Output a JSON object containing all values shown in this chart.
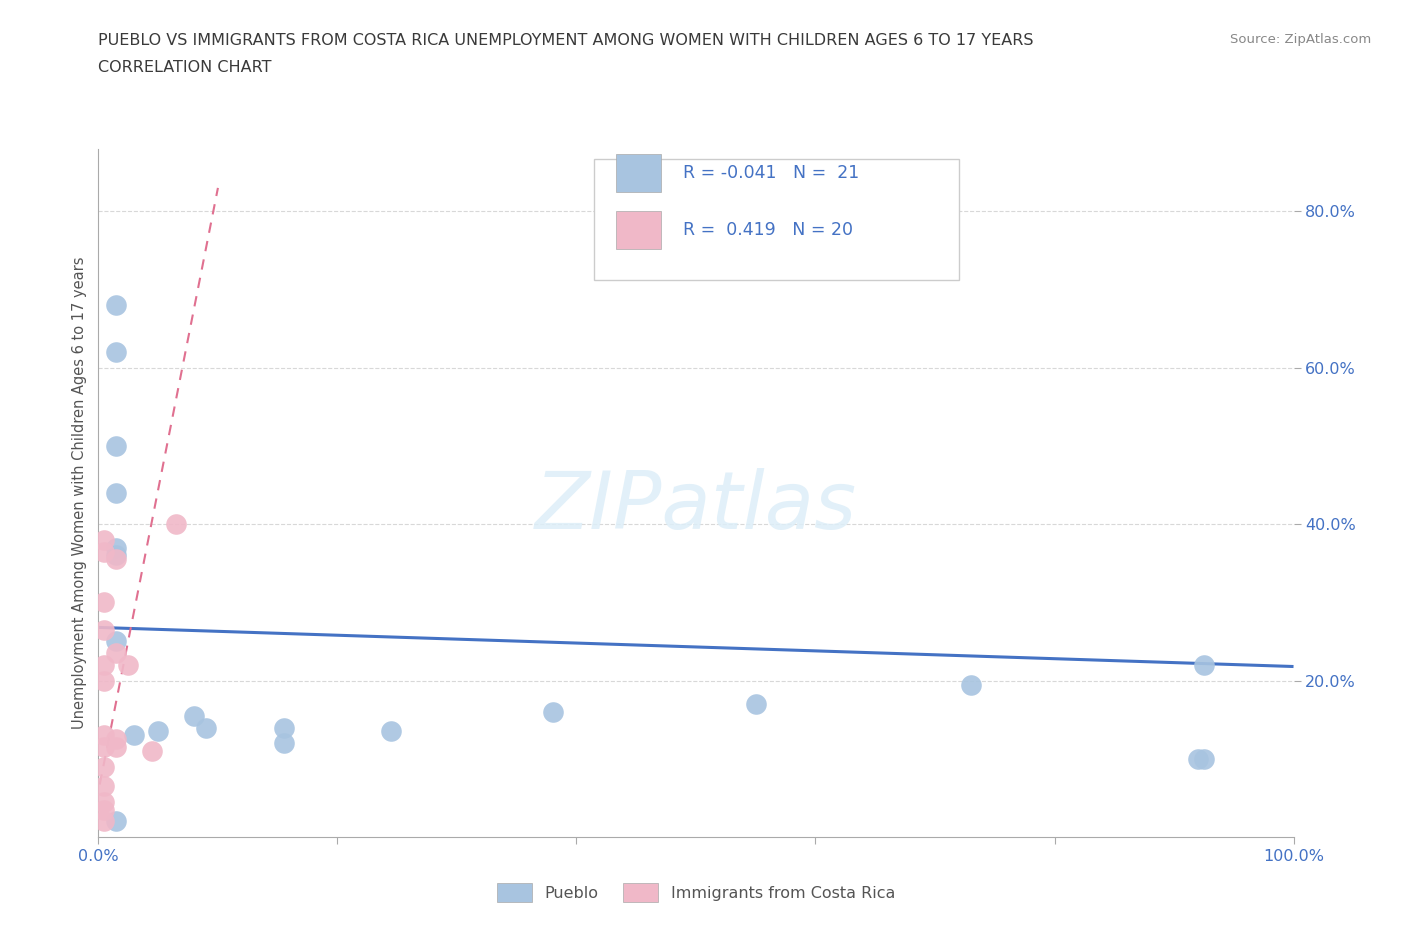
{
  "title_line1": "PUEBLO VS IMMIGRANTS FROM COSTA RICA UNEMPLOYMENT AMONG WOMEN WITH CHILDREN AGES 6 TO 17 YEARS",
  "title_line2": "CORRELATION CHART",
  "source_text": "Source: ZipAtlas.com",
  "ylabel": "Unemployment Among Women with Children Ages 6 to 17 years",
  "watermark": "ZIPatlas",
  "pueblo_color": "#a8c4e0",
  "costa_rica_color": "#f0b8c8",
  "pueblo_line_color": "#4472c4",
  "costa_rica_line_color": "#e07090",
  "legend_pueblo_label": "Pueblo",
  "legend_cr_label": "Immigrants from Costa Rica",
  "pueblo_R": "-0.041",
  "pueblo_N": "21",
  "cr_R": "0.419",
  "cr_N": "20",
  "xlim": [
    0.0,
    1.0
  ],
  "ylim": [
    0.0,
    0.88
  ],
  "yticks": [
    0.2,
    0.4,
    0.6,
    0.8
  ],
  "ytick_labels": [
    "20.0%",
    "40.0%",
    "60.0%",
    "80.0%"
  ],
  "pueblo_x": [
    0.015,
    0.015,
    0.015,
    0.015,
    0.015,
    0.015,
    0.03,
    0.05,
    0.08,
    0.09,
    0.155,
    0.155,
    0.245,
    0.38,
    0.55,
    0.73,
    0.92,
    0.925,
    0.925,
    0.015,
    0.015
  ],
  "pueblo_y": [
    0.68,
    0.62,
    0.5,
    0.37,
    0.36,
    0.25,
    0.13,
    0.135,
    0.155,
    0.14,
    0.14,
    0.12,
    0.135,
    0.16,
    0.17,
    0.195,
    0.1,
    0.1,
    0.22,
    0.44,
    0.02
  ],
  "cr_x": [
    0.005,
    0.005,
    0.005,
    0.005,
    0.005,
    0.005,
    0.005,
    0.005,
    0.005,
    0.005,
    0.005,
    0.005,
    0.005,
    0.015,
    0.015,
    0.015,
    0.015,
    0.025,
    0.045,
    0.065
  ],
  "cr_y": [
    0.38,
    0.365,
    0.3,
    0.265,
    0.22,
    0.2,
    0.13,
    0.115,
    0.09,
    0.065,
    0.045,
    0.035,
    0.02,
    0.355,
    0.235,
    0.125,
    0.115,
    0.22,
    0.11,
    0.4
  ],
  "pueblo_trend_x": [
    0.0,
    1.0
  ],
  "pueblo_trend_y": [
    0.268,
    0.218
  ],
  "cr_trend_x": [
    -0.005,
    0.1
  ],
  "cr_trend_y": [
    0.02,
    0.83
  ],
  "background_color": "#ffffff",
  "grid_color": "#d8d8d8",
  "title_color": "#3a3a3a",
  "tick_label_color": "#4472c4",
  "label_color": "#555555"
}
